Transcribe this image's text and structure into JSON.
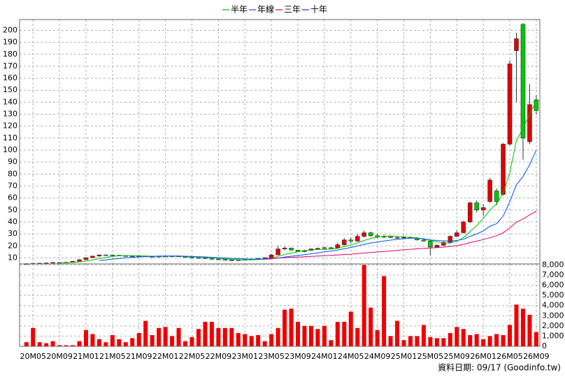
{
  "chart_data": [
    {
      "type": "candlestick",
      "ylim": [
        5,
        209
      ],
      "yticks": [
        10,
        20,
        30,
        40,
        50,
        60,
        70,
        80,
        90,
        100,
        110,
        120,
        130,
        140,
        150,
        160,
        170,
        180,
        190,
        200
      ],
      "grid": true,
      "up_color": "#e00000",
      "down_color": "#00c800",
      "open": [
        5.0,
        5.2,
        5.5,
        5.6,
        5.8,
        6.2,
        6.0,
        6.3,
        7.2,
        8.5,
        10.2,
        11.5,
        12.5,
        12.4,
        12.2,
        11.8,
        11.5,
        11.2,
        11.6,
        11.0,
        11.2,
        11.3,
        11.5,
        11.6,
        11.0,
        10.5,
        10.2,
        10.0,
        9.4,
        9.0,
        8.6,
        8.2,
        8.0,
        8.3,
        8.6,
        9.0,
        9.6,
        10.2,
        12.5,
        17.5,
        18.2,
        16.5,
        15.2,
        16.2,
        17.5,
        18.0,
        18.5,
        18.2,
        21.0,
        25.0,
        24.0,
        28.0,
        31.0,
        28.5,
        27.5,
        28.0,
        27.0,
        27.0,
        27.2,
        26.5,
        25.0,
        24.0,
        19.0,
        20.5,
        23.0,
        28.0,
        31.0,
        40.0,
        56.0,
        50.0,
        57.0,
        66.0,
        63.0,
        105.0,
        183.0,
        205.0,
        107.0,
        142.0
      ],
      "high": [
        5.5,
        5.8,
        5.9,
        6.1,
        6.5,
        6.4,
        6.6,
        7.5,
        8.8,
        10.6,
        11.8,
        12.9,
        13.0,
        12.8,
        12.5,
        12.0,
        11.8,
        12.0,
        11.9,
        11.5,
        11.6,
        11.8,
        12.0,
        11.9,
        11.3,
        10.8,
        10.5,
        10.3,
        9.6,
        9.2,
        8.9,
        8.5,
        8.5,
        8.8,
        9.2,
        9.8,
        10.5,
        13.5,
        20.0,
        19.5,
        18.8,
        17.0,
        16.8,
        18.0,
        18.6,
        19.2,
        19.0,
        22.5,
        26.5,
        27.0,
        30.0,
        33.0,
        32.0,
        30.0,
        29.5,
        28.5,
        28.5,
        28.5,
        28.0,
        27.0,
        26.0,
        25.0,
        21.5,
        24.0,
        29.0,
        33.0,
        41.0,
        57.0,
        58.0,
        55.0,
        77.0,
        68.0,
        106.0,
        175.0,
        198.0,
        206.0,
        155.0,
        146.0
      ],
      "low": [
        4.8,
        5.0,
        5.3,
        5.4,
        5.6,
        5.8,
        5.8,
        6.1,
        7.0,
        8.3,
        10.0,
        11.2,
        12.0,
        11.9,
        11.6,
        11.3,
        11.0,
        11.0,
        10.8,
        10.8,
        11.0,
        11.1,
        11.3,
        10.8,
        10.3,
        10.0,
        9.8,
        9.2,
        8.8,
        8.4,
        8.0,
        7.8,
        7.8,
        8.1,
        8.4,
        8.8,
        9.4,
        10.0,
        12.3,
        16.5,
        16.0,
        15.0,
        14.8,
        16.0,
        17.2,
        17.5,
        17.8,
        18.0,
        20.5,
        22.0,
        23.5,
        27.0,
        27.5,
        26.5,
        26.5,
        26.5,
        26.5,
        26.5,
        26.0,
        24.5,
        23.5,
        12.0,
        18.5,
        20.0,
        22.5,
        27.5,
        30.5,
        39.0,
        48.0,
        45.0,
        56.0,
        54.0,
        62.0,
        104.0,
        140.0,
        92.0,
        105.0,
        130.0
      ],
      "close": [
        5.2,
        5.5,
        5.6,
        5.8,
        6.2,
        6.0,
        6.3,
        7.2,
        8.5,
        10.2,
        11.5,
        12.5,
        12.4,
        12.2,
        11.8,
        11.5,
        11.2,
        11.6,
        11.0,
        11.2,
        11.3,
        11.5,
        11.6,
        11.0,
        10.5,
        10.2,
        10.0,
        9.4,
        9.0,
        8.6,
        8.2,
        8.0,
        8.3,
        8.6,
        9.0,
        9.6,
        10.2,
        12.5,
        17.5,
        18.2,
        16.5,
        15.2,
        16.2,
        17.5,
        18.0,
        18.5,
        18.2,
        21.0,
        25.0,
        24.0,
        28.0,
        31.0,
        28.5,
        27.5,
        28.0,
        27.0,
        27.0,
        27.2,
        26.5,
        25.0,
        24.0,
        19.0,
        20.5,
        23.0,
        28.0,
        31.0,
        40.0,
        56.0,
        50.0,
        52.0,
        75.0,
        57.0,
        105.0,
        172.0,
        193.0,
        110.0,
        138.0,
        133.0
      ],
      "series": [
        {
          "name": "半年",
          "color": "#00c000",
          "values": [
            null,
            null,
            null,
            null,
            null,
            5.7,
            5.9,
            6.2,
            6.7,
            7.4,
            8.3,
            9.4,
            10.4,
            11.2,
            11.8,
            12.0,
            11.9,
            11.8,
            11.6,
            11.4,
            11.3,
            11.4,
            11.4,
            11.4,
            11.2,
            11.0,
            10.8,
            10.4,
            10.0,
            9.6,
            9.2,
            8.8,
            8.5,
            8.3,
            8.4,
            8.6,
            9.0,
            9.7,
            11.3,
            12.9,
            14.0,
            15.0,
            16.0,
            16.8,
            17.0,
            17.0,
            17.3,
            18.0,
            19.6,
            20.9,
            22.5,
            24.5,
            26.3,
            27.4,
            28.0,
            28.3,
            28.0,
            27.5,
            27.2,
            26.7,
            26.0,
            24.6,
            23.4,
            22.5,
            22.4,
            24.0,
            27.0,
            32.0,
            37.0,
            43.0,
            50.0,
            55.0,
            64.0,
            81.0,
            108.0,
            118.0,
            130.0,
            141.0
          ]
        },
        {
          "name": "年線",
          "color": "#0050ff",
          "values": [
            null,
            null,
            null,
            null,
            null,
            null,
            null,
            null,
            null,
            null,
            null,
            7.8,
            8.4,
            9.0,
            9.5,
            10.0,
            10.4,
            10.8,
            11.1,
            11.3,
            11.5,
            11.6,
            11.6,
            11.5,
            11.4,
            11.2,
            11.0,
            10.8,
            10.5,
            10.2,
            9.9,
            9.6,
            9.4,
            9.2,
            9.0,
            8.9,
            8.9,
            9.2,
            9.9,
            10.7,
            11.4,
            12.0,
            12.7,
            13.4,
            14.2,
            15.0,
            15.7,
            16.5,
            17.7,
            18.7,
            20.0,
            21.4,
            22.4,
            23.3,
            24.1,
            24.8,
            25.5,
            26.0,
            26.5,
            26.5,
            26.0,
            25.0,
            24.6,
            24.2,
            24.2,
            24.5,
            25.6,
            28.0,
            30.0,
            32.5,
            36.5,
            38.5,
            45.0,
            57.0,
            71.0,
            78.0,
            88.0,
            100.0
          ]
        },
        {
          "name": "三年",
          "color": "#e0006a",
          "values": [
            null,
            null,
            null,
            null,
            null,
            null,
            null,
            null,
            null,
            null,
            null,
            null,
            null,
            null,
            null,
            null,
            null,
            null,
            null,
            null,
            null,
            null,
            null,
            null,
            null,
            null,
            null,
            null,
            null,
            null,
            null,
            null,
            null,
            null,
            null,
            null,
            9.5,
            9.6,
            9.8,
            10.2,
            10.5,
            10.7,
            11.0,
            11.3,
            11.6,
            11.9,
            12.1,
            12.4,
            12.8,
            13.1,
            13.6,
            14.1,
            14.5,
            14.9,
            15.4,
            15.8,
            16.3,
            16.8,
            17.2,
            17.6,
            18.0,
            18.3,
            18.6,
            19.0,
            19.6,
            20.3,
            21.3,
            22.8,
            24.0,
            25.3,
            27.0,
            28.5,
            31.0,
            35.0,
            40.0,
            42.5,
            46.0,
            49.0
          ]
        },
        {
          "name": "十年",
          "color": "#8000c0",
          "values": [
            null,
            null,
            null,
            null,
            null,
            null,
            null,
            null,
            null,
            null,
            null,
            null,
            null,
            null,
            null,
            null,
            null,
            null,
            null,
            null,
            null,
            null,
            null,
            null,
            null,
            null,
            null,
            null,
            null,
            null,
            null,
            null,
            null,
            null,
            null,
            null,
            null,
            null,
            null,
            null,
            null,
            null,
            null,
            null,
            null,
            null,
            null,
            null,
            null,
            null,
            null,
            null,
            null,
            null,
            null,
            null,
            null,
            null,
            null,
            null,
            null,
            null,
            null,
            null,
            null,
            null,
            null,
            null,
            null,
            null,
            null,
            null,
            null,
            null,
            null,
            null,
            null,
            null
          ]
        }
      ]
    },
    {
      "type": "bar",
      "categories": [
        null,
        "20M05",
        null,
        null,
        null,
        "20M09",
        null,
        null,
        null,
        "21M01",
        null,
        null,
        null,
        "21M05",
        null,
        null,
        null,
        "21M09",
        null,
        null,
        null,
        "22M01",
        null,
        null,
        null,
        "22M05",
        null,
        null,
        null,
        "22M09",
        null,
        null,
        null,
        "23M01",
        null,
        null,
        null,
        "23M05",
        null,
        null,
        null,
        "23M09",
        null,
        null,
        null,
        "24M01",
        null,
        null,
        null,
        "24M05",
        null,
        null,
        null,
        "24M09",
        null,
        null,
        null,
        "25M01",
        null,
        null,
        null,
        "25M05",
        null,
        null,
        null,
        "25M09",
        null,
        null,
        null,
        "26M01",
        null,
        null,
        null,
        "26M05",
        null,
        null,
        null,
        "26M09"
      ],
      "values": [
        400,
        1800,
        400,
        300,
        500,
        100,
        100,
        100,
        500,
        1600,
        1200,
        700,
        400,
        1100,
        700,
        400,
        800,
        1300,
        2500,
        1100,
        1800,
        1900,
        1000,
        1800,
        500,
        900,
        1700,
        2400,
        2400,
        1800,
        1800,
        1800,
        1300,
        1200,
        1000,
        1100,
        500,
        1200,
        1800,
        3600,
        3700,
        2400,
        2000,
        2000,
        1700,
        2000,
        600,
        2400,
        2400,
        3400,
        1800,
        8000,
        3800,
        1600,
        6900,
        1000,
        2500,
        600,
        1000,
        1000,
        2100,
        900,
        800,
        800,
        1300,
        1900,
        1700,
        1100,
        1200,
        700,
        1000,
        1200,
        1100,
        2100,
        4100,
        3700,
        3100,
        1400
      ],
      "color": "#ee0000",
      "ylim": [
        0,
        8100
      ],
      "yticks": [
        0,
        {
          "value": 1000,
          "label": "1,000"
        },
        {
          "value": 2000,
          "label": "2,000"
        },
        {
          "value": 3000,
          "label": "3,000"
        },
        {
          "value": 4000,
          "label": "4,000"
        },
        {
          "value": 5000,
          "label": "5,000"
        },
        {
          "value": 6000,
          "label": "6,000"
        },
        {
          "value": 7000,
          "label": "7,000"
        },
        {
          "value": 8000,
          "label": "8,000"
        }
      ],
      "grid": true
    }
  ],
  "footer": "資料日期: 09/17 (Goodinfo.tw)"
}
